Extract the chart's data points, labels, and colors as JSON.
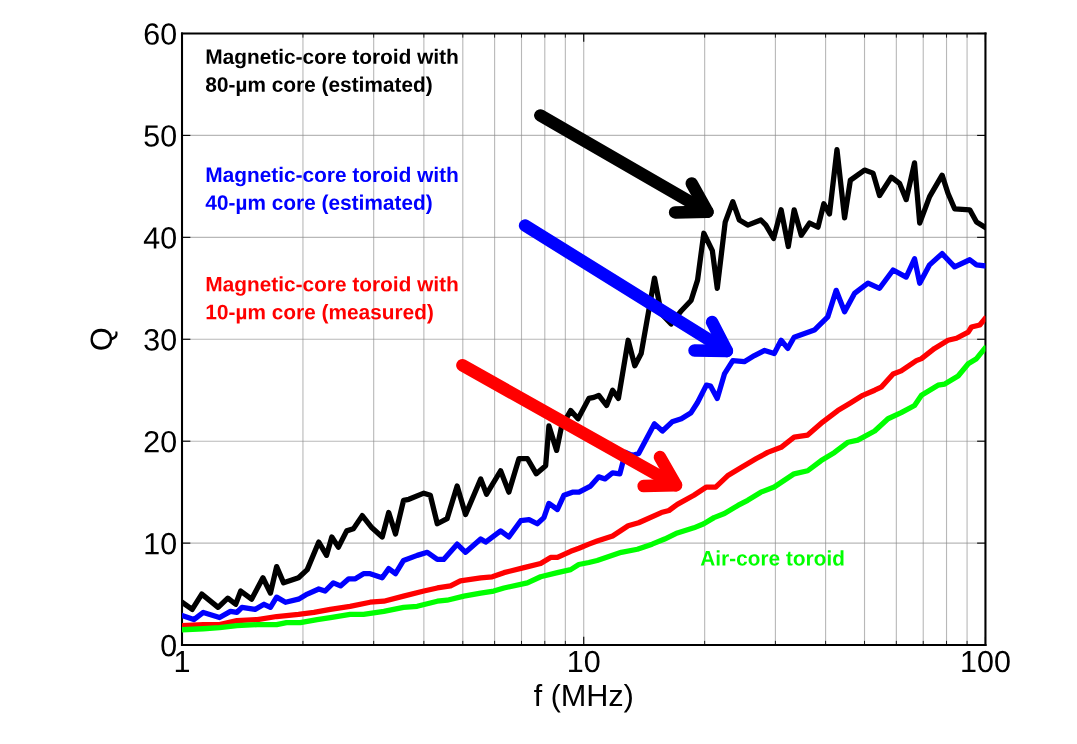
{
  "chart_data": {
    "type": "line",
    "xlabel": "f (MHz)",
    "ylabel": "Q",
    "log": "x",
    "xlim": [
      1,
      100
    ],
    "xticks": [
      1,
      10,
      100
    ],
    "ylim": [
      0,
      60
    ],
    "yticks": [
      0,
      10,
      20,
      30,
      40,
      50,
      60
    ],
    "grid": true,
    "line_style": "solid",
    "series": [
      {
        "name": "Magnetic-core toroid with\n80-µm core (estimated)",
        "color": "#000000",
        "x": [
          1.0,
          1.06,
          1.12,
          1.23,
          1.3,
          1.36,
          1.4,
          1.49,
          1.59,
          1.66,
          1.72,
          1.79,
          1.95,
          2.05,
          2.19,
          2.29,
          2.36,
          2.45,
          2.57,
          2.67,
          2.81,
          2.97,
          3.15,
          3.27,
          3.4,
          3.56,
          3.67,
          4.0,
          4.15,
          4.32,
          4.57,
          4.84,
          5.08,
          5.54,
          5.73,
          6.21,
          6.51,
          6.9,
          7.24,
          7.62,
          8.04,
          8.19,
          8.56,
          8.8,
          9.28,
          9.68,
          10.3,
          10.6,
          10.9,
          11.4,
          11.8,
          12.2,
          12.9,
          13.4,
          13.9,
          15.0,
          15.6,
          16.5,
          17.5,
          18.5,
          19.2,
          19.9,
          20.9,
          21.5,
          22.5,
          23.5,
          24.4,
          25.6,
          27.6,
          28.4,
          29.7,
          31.0,
          32.3,
          33.4,
          34.8,
          36.5,
          38.3,
          39.6,
          40.9,
          42.7,
          44.6,
          46.1,
          50.0,
          52.5,
          54.5,
          58.3,
          61.1,
          63.5,
          66.6,
          68.6,
          72.6,
          78.0,
          80.7,
          83.8,
          91.4,
          95.0,
          99.6
        ],
        "values": [
          4.2,
          3.5,
          5.0,
          3.7,
          4.6,
          4.0,
          5.3,
          4.5,
          6.6,
          5.1,
          7.7,
          6.1,
          6.6,
          7.4,
          10.1,
          8.8,
          10.6,
          9.6,
          11.2,
          11.4,
          12.7,
          11.5,
          10.6,
          13.0,
          10.9,
          14.2,
          14.3,
          14.9,
          14.7,
          11.9,
          12.4,
          15.6,
          12.8,
          16.3,
          14.8,
          17.1,
          15.0,
          18.3,
          18.3,
          16.8,
          17.6,
          21.5,
          19.1,
          21.4,
          23.0,
          22.2,
          24.2,
          24.3,
          24.5,
          23.5,
          25.0,
          24.2,
          29.9,
          27.4,
          28.6,
          36.0,
          32.5,
          31.5,
          32.8,
          33.8,
          35.8,
          40.4,
          38.7,
          35.0,
          41.5,
          43.5,
          41.7,
          41.2,
          41.7,
          41.2,
          39.9,
          42.7,
          39.1,
          42.7,
          40.2,
          41.4,
          41.0,
          43.3,
          42.3,
          48.6,
          41.9,
          45.6,
          46.6,
          46.3,
          44.1,
          45.9,
          45.3,
          43.7,
          47.3,
          41.4,
          44.0,
          46.1,
          44.3,
          42.8,
          42.7,
          41.5,
          41.0
        ]
      },
      {
        "name": "Magnetic-core toroid with\n40-µm core (estimated)",
        "color": "#0000ff",
        "x": [
          1.0,
          1.07,
          1.13,
          1.24,
          1.32,
          1.37,
          1.41,
          1.52,
          1.6,
          1.66,
          1.72,
          1.81,
          1.95,
          2.05,
          2.19,
          2.27,
          2.38,
          2.48,
          2.6,
          2.7,
          2.83,
          2.94,
          3.15,
          3.27,
          3.4,
          3.56,
          3.85,
          4.08,
          4.32,
          4.48,
          4.84,
          5.08,
          5.54,
          5.7,
          6.21,
          6.51,
          6.97,
          7.31,
          7.66,
          7.96,
          8.19,
          8.6,
          8.93,
          9.37,
          9.73,
          10.4,
          10.9,
          11.3,
          11.8,
          12.3,
          12.7,
          13.2,
          13.7,
          15.0,
          15.7,
          16.6,
          17.5,
          18.5,
          19.2,
          20.2,
          20.7,
          21.5,
          22.4,
          23.5,
          25.1,
          26.6,
          28.2,
          29.8,
          31.0,
          32.2,
          33.4,
          37.5,
          40.5,
          42.5,
          44.6,
          47.2,
          51.0,
          54.5,
          58.9,
          63.5,
          66.6,
          68.6,
          72.6,
          78.0,
          83.8,
          91.4,
          95.0,
          99.6
        ],
        "values": [
          2.9,
          2.5,
          3.2,
          2.7,
          3.3,
          3.2,
          3.7,
          3.5,
          4.0,
          3.7,
          4.7,
          4.2,
          4.5,
          5.0,
          5.5,
          5.3,
          6.1,
          5.8,
          6.5,
          6.5,
          7.0,
          7.0,
          6.6,
          7.5,
          7.0,
          8.3,
          8.8,
          9.1,
          8.4,
          8.4,
          9.9,
          9.1,
          10.4,
          10.1,
          11.2,
          10.6,
          12.2,
          12.3,
          11.9,
          12.5,
          13.9,
          13.3,
          14.7,
          15.0,
          15.0,
          15.6,
          16.5,
          16.3,
          16.9,
          16.8,
          18.9,
          18.6,
          18.8,
          21.7,
          21.0,
          21.9,
          22.2,
          22.8,
          23.8,
          25.5,
          25.4,
          24.2,
          26.6,
          27.9,
          27.8,
          28.4,
          28.9,
          28.6,
          29.9,
          29.1,
          30.2,
          30.9,
          32.2,
          34.8,
          32.7,
          34.5,
          35.5,
          35.0,
          36.8,
          36.1,
          37.9,
          35.5,
          37.3,
          38.4,
          37.1,
          37.8,
          37.3,
          37.2
        ]
      },
      {
        "name": "Magnetic-core toroid with\n10-µm core (measured)",
        "color": "#ff0000",
        "x": [
          1.0,
          1.13,
          1.24,
          1.37,
          1.54,
          1.72,
          1.95,
          2.13,
          2.34,
          2.62,
          2.94,
          3.18,
          3.56,
          4.0,
          4.32,
          4.66,
          4.93,
          5.54,
          5.92,
          6.33,
          7.1,
          7.81,
          8.27,
          8.6,
          9.28,
          9.73,
          10.3,
          10.8,
          11.8,
          12.9,
          13.7,
          15.6,
          16.3,
          17.1,
          18.8,
          20.2,
          21.3,
          22.8,
          24.6,
          26.9,
          28.7,
          31.0,
          33.4,
          36.1,
          39.4,
          42.9,
          45.9,
          49.5,
          53.0,
          55.0,
          58.9,
          61.7,
          67.3,
          69.3,
          74.7,
          80.7,
          84.7,
          90.6,
          92.3,
          96.8,
          99.6
        ],
        "values": [
          1.9,
          2.0,
          2.0,
          2.4,
          2.5,
          2.8,
          3.0,
          3.2,
          3.5,
          3.8,
          4.2,
          4.3,
          4.8,
          5.3,
          5.6,
          5.8,
          6.3,
          6.6,
          6.7,
          7.1,
          7.6,
          8.0,
          8.6,
          8.6,
          9.2,
          9.5,
          9.9,
          10.2,
          10.7,
          11.7,
          12.0,
          13.0,
          13.2,
          13.8,
          14.7,
          15.5,
          15.5,
          16.6,
          17.4,
          18.3,
          18.9,
          19.4,
          20.4,
          20.6,
          21.9,
          23.0,
          23.7,
          24.5,
          25.0,
          25.3,
          26.6,
          26.9,
          27.9,
          28.1,
          29.1,
          29.9,
          30.1,
          30.7,
          31.2,
          31.4,
          32.0
        ]
      },
      {
        "name": "Air-core toroid",
        "color": "#00ff00",
        "x": [
          1.0,
          1.13,
          1.24,
          1.37,
          1.54,
          1.72,
          1.82,
          1.97,
          2.17,
          2.34,
          2.62,
          2.83,
          3.18,
          3.56,
          3.85,
          4.32,
          4.57,
          5.03,
          5.54,
          5.97,
          6.33,
          7.24,
          7.81,
          8.6,
          9.28,
          9.72,
          10.3,
          10.8,
          12.4,
          13.6,
          14.8,
          15.9,
          17.1,
          18.8,
          19.9,
          21.1,
          22.4,
          24.2,
          25.6,
          27.6,
          29.8,
          33.4,
          36.1,
          39.0,
          42.1,
          45.5,
          48.1,
          53.0,
          57.2,
          61.7,
          66.6,
          69.3,
          76.2,
          79.2,
          85.5,
          90.6,
          95.0,
          99.6
        ],
        "values": [
          1.5,
          1.6,
          1.7,
          1.9,
          2.0,
          2.0,
          2.2,
          2.2,
          2.5,
          2.7,
          3.0,
          3.0,
          3.3,
          3.7,
          3.8,
          4.3,
          4.4,
          4.8,
          5.1,
          5.3,
          5.6,
          6.1,
          6.7,
          7.1,
          7.4,
          7.9,
          8.1,
          8.3,
          9.1,
          9.4,
          9.9,
          10.4,
          11.0,
          11.5,
          11.9,
          12.5,
          12.9,
          13.7,
          14.2,
          15.0,
          15.5,
          16.8,
          17.1,
          18.1,
          18.9,
          19.9,
          20.1,
          21.0,
          22.2,
          22.8,
          23.5,
          24.5,
          25.5,
          25.6,
          26.4,
          27.6,
          28.1,
          29.1
        ]
      }
    ]
  }
}
